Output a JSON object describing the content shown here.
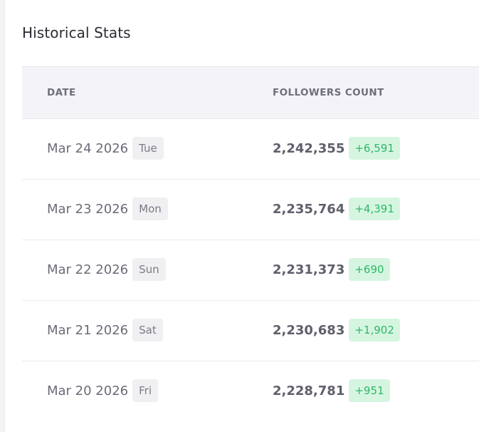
{
  "card": {
    "title": "Historical Stats"
  },
  "table": {
    "headers": {
      "date": "DATE",
      "followers": "FOLLOWERS COUNT"
    },
    "rows": [
      {
        "date": "Mar 24 2026",
        "day": "Tue",
        "count": "2,242,355",
        "delta": "+6,591"
      },
      {
        "date": "Mar 23 2026",
        "day": "Mon",
        "count": "2,235,764",
        "delta": "+4,391"
      },
      {
        "date": "Mar 22 2026",
        "day": "Sun",
        "count": "2,231,373",
        "delta": "+690"
      },
      {
        "date": "Mar 21 2026",
        "day": "Sat",
        "count": "2,230,683",
        "delta": "+1,902"
      },
      {
        "date": "Mar 20 2026",
        "day": "Fri",
        "count": "2,228,781",
        "delta": "+951"
      }
    ]
  },
  "colors": {
    "positive_badge_bg": "#d6f5e1",
    "positive_badge_text": "#2eb866",
    "header_bg": "#f4f4f8"
  }
}
